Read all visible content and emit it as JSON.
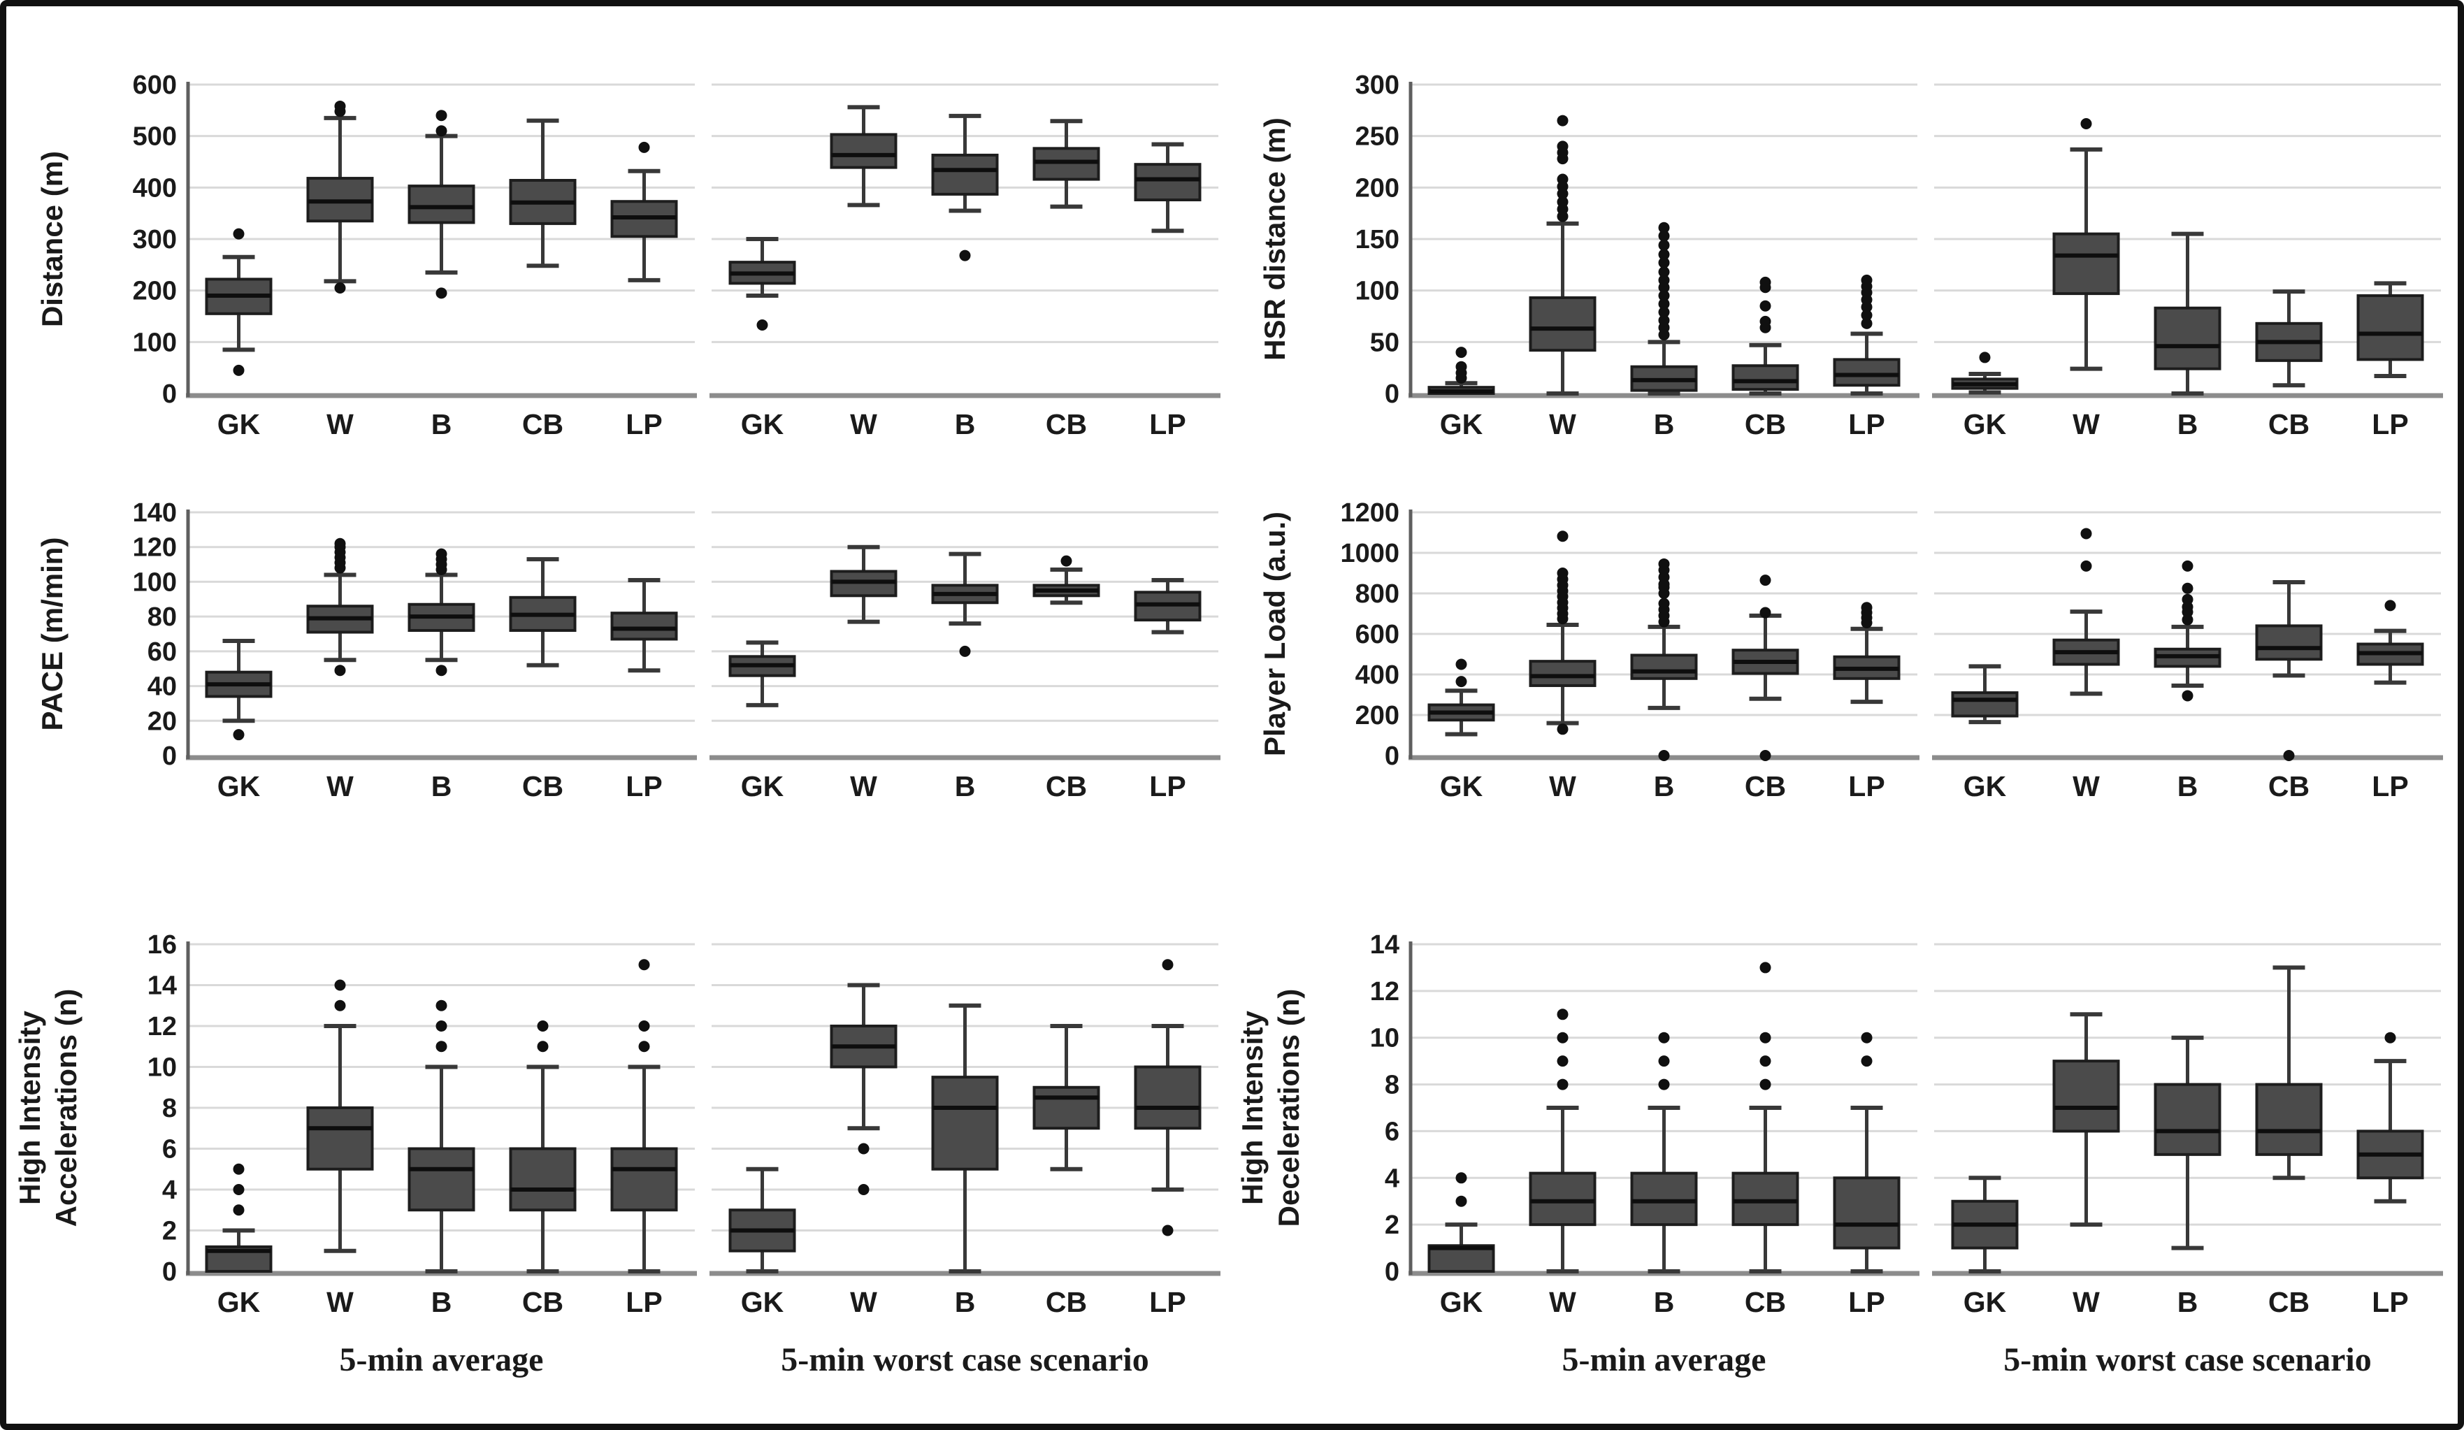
{
  "figure": {
    "description": "Box plots of physical match demands by playing position, comparing 5-min average vs 5-min worst case scenario",
    "categories": [
      "GK",
      "W",
      "B",
      "CB",
      "LP"
    ],
    "group_labels": [
      "5-min average",
      "5-min worst case scenario"
    ]
  },
  "style": {
    "background": "#ffffff",
    "frame": "#111111",
    "box_fill": "#4b4b4b",
    "box_stroke": "#1d1d1d",
    "median": "#0e0e0e",
    "whisker": "#383838",
    "grid": "#d9d9d9",
    "axis": "#8c8c8c",
    "spine": "#5f5f5f",
    "text": "#1a1a1a"
  },
  "chart_data": [
    {
      "id": "distance",
      "type": "boxplot",
      "ylabel": "Distance (m)",
      "ylabel_lines": [
        "Distance (m)"
      ],
      "ylim": [
        0,
        600
      ],
      "ystep": 100,
      "categories": [
        "GK",
        "W",
        "B",
        "CB",
        "LP"
      ],
      "show_group_labels": false,
      "groups": [
        {
          "label": "5-min average",
          "boxes": [
            {
              "lo": 85,
              "q1": 155,
              "med": 190,
              "q3": 222,
              "hi": 265,
              "out": [
                45,
                310
              ]
            },
            {
              "lo": 218,
              "q1": 335,
              "med": 373,
              "q3": 418,
              "hi": 535,
              "out": [
                205,
                548,
                558
              ]
            },
            {
              "lo": 235,
              "q1": 332,
              "med": 362,
              "q3": 403,
              "hi": 500,
              "out": [
                195,
                510,
                540
              ]
            },
            {
              "lo": 248,
              "q1": 330,
              "med": 371,
              "q3": 414,
              "hi": 530,
              "out": []
            },
            {
              "lo": 220,
              "q1": 305,
              "med": 342,
              "q3": 373,
              "hi": 432,
              "out": [
                478
              ]
            }
          ]
        },
        {
          "label": "5-min worst case scenario",
          "boxes": [
            {
              "lo": 190,
              "q1": 214,
              "med": 233,
              "q3": 255,
              "hi": 300,
              "out": [
                133
              ]
            },
            {
              "lo": 366,
              "q1": 439,
              "med": 463,
              "q3": 503,
              "hi": 556,
              "out": []
            },
            {
              "lo": 355,
              "q1": 387,
              "med": 434,
              "q3": 463,
              "hi": 539,
              "out": [
                268
              ]
            },
            {
              "lo": 363,
              "q1": 416,
              "med": 450,
              "q3": 476,
              "hi": 529,
              "out": []
            },
            {
              "lo": 316,
              "q1": 376,
              "med": 416,
              "q3": 445,
              "hi": 484,
              "out": []
            }
          ]
        }
      ]
    },
    {
      "id": "hsr-distance",
      "type": "boxplot",
      "ylabel": "HSR distance (m)",
      "ylabel_lines": [
        "HSR distance (m)"
      ],
      "ylim": [
        0,
        300
      ],
      "ystep": 50,
      "categories": [
        "GK",
        "W",
        "B",
        "CB",
        "LP"
      ],
      "show_group_labels": false,
      "groups": [
        {
          "label": "5-min average",
          "boxes": [
            {
              "lo": 0,
              "q1": 0,
              "med": 2,
              "q3": 6,
              "hi": 10,
              "out": [
                15,
                20,
                26,
                40
              ]
            },
            {
              "lo": 0,
              "q1": 42,
              "med": 63,
              "q3": 93,
              "hi": 165,
              "out": [
                172,
                179,
                186,
                194,
                201,
                208,
                228,
                234,
                240,
                265
              ]
            },
            {
              "lo": 0,
              "q1": 3,
              "med": 13,
              "q3": 26,
              "hi": 50,
              "out": [
                57,
                64,
                71,
                79,
                87,
                95,
                103,
                110,
                118,
                127,
                135,
                144,
                153,
                161
              ]
            },
            {
              "lo": 0,
              "q1": 4,
              "med": 12,
              "q3": 27,
              "hi": 47,
              "out": [
                64,
                70,
                85,
                103,
                108
              ]
            },
            {
              "lo": 0,
              "q1": 8,
              "med": 18,
              "q3": 33,
              "hi": 58,
              "out": [
                68,
                76,
                84,
                91,
                98,
                104,
                110
              ]
            }
          ]
        },
        {
          "label": "5-min worst case scenario",
          "boxes": [
            {
              "lo": 1,
              "q1": 5,
              "med": 9,
              "q3": 14,
              "hi": 19,
              "out": [
                35
              ]
            },
            {
              "lo": 24,
              "q1": 97,
              "med": 134,
              "q3": 155,
              "hi": 237,
              "out": [
                262
              ]
            },
            {
              "lo": 0,
              "q1": 24,
              "med": 46,
              "q3": 83,
              "hi": 155,
              "out": []
            },
            {
              "lo": 8,
              "q1": 32,
              "med": 50,
              "q3": 68,
              "hi": 99,
              "out": []
            },
            {
              "lo": 17,
              "q1": 33,
              "med": 58,
              "q3": 95,
              "hi": 107,
              "out": []
            }
          ]
        }
      ]
    },
    {
      "id": "pace",
      "type": "boxplot",
      "ylabel": "PACE (m/min)",
      "ylabel_lines": [
        "PACE (m/min)"
      ],
      "ylim": [
        0,
        140
      ],
      "ystep": 20,
      "categories": [
        "GK",
        "W",
        "B",
        "CB",
        "LP"
      ],
      "show_group_labels": false,
      "groups": [
        {
          "label": "5-min average",
          "boxes": [
            {
              "lo": 20,
              "q1": 34,
              "med": 41,
              "q3": 48,
              "hi": 66,
              "out": [
                12
              ]
            },
            {
              "lo": 55,
              "q1": 71,
              "med": 79,
              "q3": 86,
              "hi": 104,
              "out": [
                49,
                108,
                111,
                114,
                117,
                120,
                122
              ]
            },
            {
              "lo": 55,
              "q1": 72,
              "med": 80,
              "q3": 87,
              "hi": 104,
              "out": [
                49,
                107,
                110,
                113,
                116
              ]
            },
            {
              "lo": 52,
              "q1": 72,
              "med": 81,
              "q3": 91,
              "hi": 113,
              "out": []
            },
            {
              "lo": 49,
              "q1": 67,
              "med": 73,
              "q3": 82,
              "hi": 101,
              "out": []
            }
          ]
        },
        {
          "label": "5-min worst case scenario",
          "boxes": [
            {
              "lo": 29,
              "q1": 46,
              "med": 52,
              "q3": 57,
              "hi": 65,
              "out": []
            },
            {
              "lo": 77,
              "q1": 92,
              "med": 100,
              "q3": 106,
              "hi": 120,
              "out": []
            },
            {
              "lo": 76,
              "q1": 88,
              "med": 93,
              "q3": 98,
              "hi": 116,
              "out": [
                60
              ]
            },
            {
              "lo": 88,
              "q1": 92,
              "med": 95,
              "q3": 98,
              "hi": 107,
              "out": [
                112
              ]
            },
            {
              "lo": 71,
              "q1": 78,
              "med": 87,
              "q3": 94,
              "hi": 101,
              "out": []
            }
          ]
        }
      ]
    },
    {
      "id": "player-load",
      "type": "boxplot",
      "ylabel": "Player Load (a.u.)",
      "ylabel_lines": [
        "Player Load (a.u.)"
      ],
      "ylim": [
        0,
        1200
      ],
      "ystep": 200,
      "categories": [
        "GK",
        "W",
        "B",
        "CB",
        "LP"
      ],
      "show_group_labels": false,
      "groups": [
        {
          "label": "5-min average",
          "boxes": [
            {
              "lo": 105,
              "q1": 175,
              "med": 212,
              "q3": 250,
              "hi": 320,
              "out": [
                365,
                450
              ]
            },
            {
              "lo": 160,
              "q1": 345,
              "med": 392,
              "q3": 465,
              "hi": 645,
              "out": [
                130,
                675,
                700,
                728,
                755,
                785,
                812,
                840,
                870,
                900,
                1082
              ]
            },
            {
              "lo": 235,
              "q1": 380,
              "med": 415,
              "q3": 495,
              "hi": 635,
              "out": [
                0,
                660,
                690,
                720,
                750,
                800,
                830,
                845,
                880,
                915,
                945
              ]
            },
            {
              "lo": 280,
              "q1": 405,
              "med": 462,
              "q3": 520,
              "hi": 690,
              "out": [
                0,
                705,
                865
              ]
            },
            {
              "lo": 265,
              "q1": 380,
              "med": 428,
              "q3": 487,
              "hi": 625,
              "out": [
                655,
                680,
                705,
                730
              ]
            }
          ]
        },
        {
          "label": "5-min worst case scenario",
          "boxes": [
            {
              "lo": 165,
              "q1": 195,
              "med": 275,
              "q3": 310,
              "hi": 440,
              "out": []
            },
            {
              "lo": 305,
              "q1": 450,
              "med": 510,
              "q3": 570,
              "hi": 710,
              "out": [
                935,
                1095
              ]
            },
            {
              "lo": 345,
              "q1": 440,
              "med": 490,
              "q3": 525,
              "hi": 635,
              "out": [
                295,
                670,
                708,
                733,
                770,
                825,
                935
              ]
            },
            {
              "lo": 395,
              "q1": 475,
              "med": 530,
              "q3": 640,
              "hi": 855,
              "out": [
                0
              ]
            },
            {
              "lo": 360,
              "q1": 450,
              "med": 505,
              "q3": 550,
              "hi": 615,
              "out": [
                740
              ]
            }
          ]
        }
      ]
    },
    {
      "id": "hi-accelerations",
      "type": "boxplot",
      "ylabel": "High Intensity Accelerations (n)",
      "ylabel_lines": [
        "High Intensity",
        "Accelerations (n)"
      ],
      "ylim": [
        0,
        16
      ],
      "ystep": 2,
      "categories": [
        "GK",
        "W",
        "B",
        "CB",
        "LP"
      ],
      "show_group_labels": true,
      "groups": [
        {
          "label": "5-min average",
          "boxes": [
            {
              "lo": 0,
              "q1": 0,
              "med": 1,
              "q3": 1.2,
              "hi": 2,
              "out": [
                3,
                4,
                5
              ]
            },
            {
              "lo": 1,
              "q1": 5,
              "med": 7,
              "q3": 8,
              "hi": 12,
              "out": [
                13,
                14
              ]
            },
            {
              "lo": 0,
              "q1": 3,
              "med": 5,
              "q3": 6,
              "hi": 10,
              "out": [
                11,
                12,
                13
              ]
            },
            {
              "lo": 0,
              "q1": 3,
              "med": 4,
              "q3": 6,
              "hi": 10,
              "out": [
                11,
                12
              ]
            },
            {
              "lo": 0,
              "q1": 3,
              "med": 5,
              "q3": 6,
              "hi": 10,
              "out": [
                11,
                12,
                15
              ]
            }
          ]
        },
        {
          "label": "5-min worst case scenario",
          "boxes": [
            {
              "lo": 0,
              "q1": 1,
              "med": 2,
              "q3": 3,
              "hi": 5,
              "out": []
            },
            {
              "lo": 7,
              "q1": 10,
              "med": 11,
              "q3": 12,
              "hi": 14,
              "out": [
                4,
                6
              ]
            },
            {
              "lo": 0,
              "q1": 5,
              "med": 8,
              "q3": 9.5,
              "hi": 13,
              "out": []
            },
            {
              "lo": 5,
              "q1": 7,
              "med": 8.5,
              "q3": 9,
              "hi": 12,
              "out": []
            },
            {
              "lo": 4,
              "q1": 7,
              "med": 8,
              "q3": 10,
              "hi": 12,
              "out": [
                2,
                15
              ]
            }
          ]
        }
      ]
    },
    {
      "id": "hi-decelerations",
      "type": "boxplot",
      "ylabel": "High Intensity Decelerations (n)",
      "ylabel_lines": [
        "High Intensity",
        "Decelerations (n)"
      ],
      "ylim": [
        0,
        14
      ],
      "ystep": 2,
      "categories": [
        "GK",
        "W",
        "B",
        "CB",
        "LP"
      ],
      "show_group_labels": true,
      "groups": [
        {
          "label": "5-min average",
          "boxes": [
            {
              "lo": 0,
              "q1": 0,
              "med": 1,
              "q3": 1.1,
              "hi": 2,
              "out": [
                3,
                4
              ]
            },
            {
              "lo": 0,
              "q1": 2,
              "med": 3,
              "q3": 4.2,
              "hi": 7,
              "out": [
                8,
                9,
                10,
                11
              ]
            },
            {
              "lo": 0,
              "q1": 2,
              "med": 3,
              "q3": 4.2,
              "hi": 7,
              "out": [
                8,
                9,
                10
              ]
            },
            {
              "lo": 0,
              "q1": 2,
              "med": 3,
              "q3": 4.2,
              "hi": 7,
              "out": [
                8,
                9,
                10,
                13
              ]
            },
            {
              "lo": 0,
              "q1": 1,
              "med": 2,
              "q3": 4,
              "hi": 7,
              "out": [
                9,
                10
              ]
            }
          ]
        },
        {
          "label": "5-min worst case scenario",
          "boxes": [
            {
              "lo": 0,
              "q1": 1,
              "med": 2,
              "q3": 3,
              "hi": 4,
              "out": []
            },
            {
              "lo": 2,
              "q1": 6,
              "med": 7,
              "q3": 9,
              "hi": 11,
              "out": []
            },
            {
              "lo": 1,
              "q1": 5,
              "med": 6,
              "q3": 8,
              "hi": 10,
              "out": []
            },
            {
              "lo": 4,
              "q1": 5,
              "med": 6,
              "q3": 8,
              "hi": 13,
              "out": []
            },
            {
              "lo": 3,
              "q1": 4,
              "med": 5,
              "q3": 6,
              "hi": 9,
              "out": [
                10
              ]
            }
          ]
        }
      ]
    }
  ]
}
